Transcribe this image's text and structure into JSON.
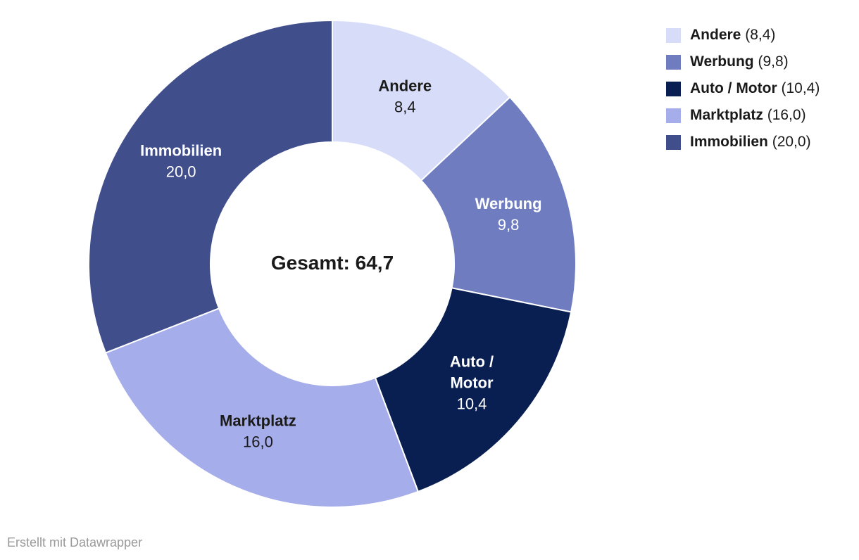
{
  "chart_data": {
    "type": "pie",
    "subtype": "donut",
    "title": "",
    "center_label": "Gesamt: 64,7",
    "total": 64.7,
    "total_display": "64,7",
    "legend_position": "top-right",
    "start_angle_deg": 0,
    "direction": "clockwise",
    "series": [
      {
        "label": "Andere",
        "value": 8.4,
        "value_display": "8,4",
        "legend_value": "(8,4)",
        "color": "#d7dcf8",
        "label_text_color": "#1a1a1a",
        "label_lines": [
          "Andere"
        ]
      },
      {
        "label": "Werbung",
        "value": 9.8,
        "value_display": "9,8",
        "legend_value": "(9,8)",
        "color": "#6f7dc0",
        "label_text_color": "#ffffff",
        "label_lines": [
          "Werbung"
        ]
      },
      {
        "label": "Auto / Motor",
        "value": 10.4,
        "value_display": "10,4",
        "legend_value": "(10,4)",
        "color": "#0a1f51",
        "label_text_color": "#ffffff",
        "label_lines": [
          "Auto /",
          "Motor"
        ]
      },
      {
        "label": "Marktplatz",
        "value": 16.0,
        "value_display": "16,0",
        "legend_value": "(16,0)",
        "color": "#a5adea",
        "label_text_color": "#1a1a1a",
        "label_lines": [
          "Marktplatz"
        ]
      },
      {
        "label": "Immobilien",
        "value": 20.0,
        "value_display": "20,0",
        "legend_value": "(20,0)",
        "color": "#414e8c",
        "label_text_color": "#ffffff",
        "label_lines": [
          "Immobilien"
        ]
      }
    ]
  },
  "footer": {
    "credit": "Erstellt mit Datawrapper"
  }
}
